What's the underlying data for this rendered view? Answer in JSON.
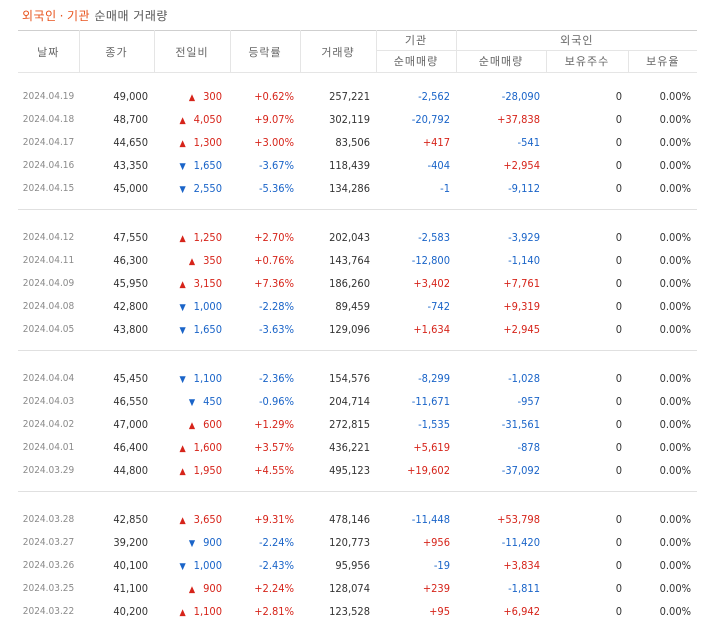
{
  "title": {
    "foreign": "외국인",
    "separator": "·",
    "institution": "기관",
    "rest": "순매매 거래량"
  },
  "headers": {
    "date": "날짜",
    "close": "종가",
    "diff": "전일비",
    "rate": "등락률",
    "volume": "거래량",
    "institution_group": "기관",
    "foreign_group": "외국인",
    "inst_net": "순매매량",
    "foreign_net": "순매매량",
    "holdings": "보유주수",
    "ratio": "보유율"
  },
  "colors": {
    "up": "#d6241a",
    "down": "#1a64c8",
    "accent": "#e8541e"
  },
  "groups": [
    [
      {
        "date": "2024.04.19",
        "close": "49,000",
        "dir": "up",
        "diff": "300",
        "rate": "+0.62%",
        "volume": "257,221",
        "inst": "-2,562",
        "forn": "-28,090",
        "hold": "0",
        "ratio": "0.00%"
      },
      {
        "date": "2024.04.18",
        "close": "48,700",
        "dir": "up",
        "diff": "4,050",
        "rate": "+9.07%",
        "volume": "302,119",
        "inst": "-20,792",
        "forn": "+37,838",
        "hold": "0",
        "ratio": "0.00%"
      },
      {
        "date": "2024.04.17",
        "close": "44,650",
        "dir": "up",
        "diff": "1,300",
        "rate": "+3.00%",
        "volume": "83,506",
        "inst": "+417",
        "forn": "-541",
        "hold": "0",
        "ratio": "0.00%"
      },
      {
        "date": "2024.04.16",
        "close": "43,350",
        "dir": "down",
        "diff": "1,650",
        "rate": "-3.67%",
        "volume": "118,439",
        "inst": "-404",
        "forn": "+2,954",
        "hold": "0",
        "ratio": "0.00%"
      },
      {
        "date": "2024.04.15",
        "close": "45,000",
        "dir": "down",
        "diff": "2,550",
        "rate": "-5.36%",
        "volume": "134,286",
        "inst": "-1",
        "forn": "-9,112",
        "hold": "0",
        "ratio": "0.00%"
      }
    ],
    [
      {
        "date": "2024.04.12",
        "close": "47,550",
        "dir": "up",
        "diff": "1,250",
        "rate": "+2.70%",
        "volume": "202,043",
        "inst": "-2,583",
        "forn": "-3,929",
        "hold": "0",
        "ratio": "0.00%"
      },
      {
        "date": "2024.04.11",
        "close": "46,300",
        "dir": "up",
        "diff": "350",
        "rate": "+0.76%",
        "volume": "143,764",
        "inst": "-12,800",
        "forn": "-1,140",
        "hold": "0",
        "ratio": "0.00%"
      },
      {
        "date": "2024.04.09",
        "close": "45,950",
        "dir": "up",
        "diff": "3,150",
        "rate": "+7.36%",
        "volume": "186,260",
        "inst": "+3,402",
        "forn": "+7,761",
        "hold": "0",
        "ratio": "0.00%"
      },
      {
        "date": "2024.04.08",
        "close": "42,800",
        "dir": "down",
        "diff": "1,000",
        "rate": "-2.28%",
        "volume": "89,459",
        "inst": "-742",
        "forn": "+9,319",
        "hold": "0",
        "ratio": "0.00%"
      },
      {
        "date": "2024.04.05",
        "close": "43,800",
        "dir": "down",
        "diff": "1,650",
        "rate": "-3.63%",
        "volume": "129,096",
        "inst": "+1,634",
        "forn": "+2,945",
        "hold": "0",
        "ratio": "0.00%"
      }
    ],
    [
      {
        "date": "2024.04.04",
        "close": "45,450",
        "dir": "down",
        "diff": "1,100",
        "rate": "-2.36%",
        "volume": "154,576",
        "inst": "-8,299",
        "forn": "-1,028",
        "hold": "0",
        "ratio": "0.00%"
      },
      {
        "date": "2024.04.03",
        "close": "46,550",
        "dir": "down",
        "diff": "450",
        "rate": "-0.96%",
        "volume": "204,714",
        "inst": "-11,671",
        "forn": "-957",
        "hold": "0",
        "ratio": "0.00%"
      },
      {
        "date": "2024.04.02",
        "close": "47,000",
        "dir": "up",
        "diff": "600",
        "rate": "+1.29%",
        "volume": "272,815",
        "inst": "-1,535",
        "forn": "-31,561",
        "hold": "0",
        "ratio": "0.00%"
      },
      {
        "date": "2024.04.01",
        "close": "46,400",
        "dir": "up",
        "diff": "1,600",
        "rate": "+3.57%",
        "volume": "436,221",
        "inst": "+5,619",
        "forn": "-878",
        "hold": "0",
        "ratio": "0.00%"
      },
      {
        "date": "2024.03.29",
        "close": "44,800",
        "dir": "up",
        "diff": "1,950",
        "rate": "+4.55%",
        "volume": "495,123",
        "inst": "+19,602",
        "forn": "-37,092",
        "hold": "0",
        "ratio": "0.00%"
      }
    ],
    [
      {
        "date": "2024.03.28",
        "close": "42,850",
        "dir": "up",
        "diff": "3,650",
        "rate": "+9.31%",
        "volume": "478,146",
        "inst": "-11,448",
        "forn": "+53,798",
        "hold": "0",
        "ratio": "0.00%"
      },
      {
        "date": "2024.03.27",
        "close": "39,200",
        "dir": "down",
        "diff": "900",
        "rate": "-2.24%",
        "volume": "120,773",
        "inst": "+956",
        "forn": "-11,420",
        "hold": "0",
        "ratio": "0.00%"
      },
      {
        "date": "2024.03.26",
        "close": "40,100",
        "dir": "down",
        "diff": "1,000",
        "rate": "-2.43%",
        "volume": "95,956",
        "inst": "-19",
        "forn": "+3,834",
        "hold": "0",
        "ratio": "0.00%"
      },
      {
        "date": "2024.03.25",
        "close": "41,100",
        "dir": "up",
        "diff": "900",
        "rate": "+2.24%",
        "volume": "128,074",
        "inst": "+239",
        "forn": "-1,811",
        "hold": "0",
        "ratio": "0.00%"
      },
      {
        "date": "2024.03.22",
        "close": "40,200",
        "dir": "up",
        "diff": "1,100",
        "rate": "+2.81%",
        "volume": "123,528",
        "inst": "+95",
        "forn": "+6,942",
        "hold": "0",
        "ratio": "0.00%"
      }
    ]
  ]
}
